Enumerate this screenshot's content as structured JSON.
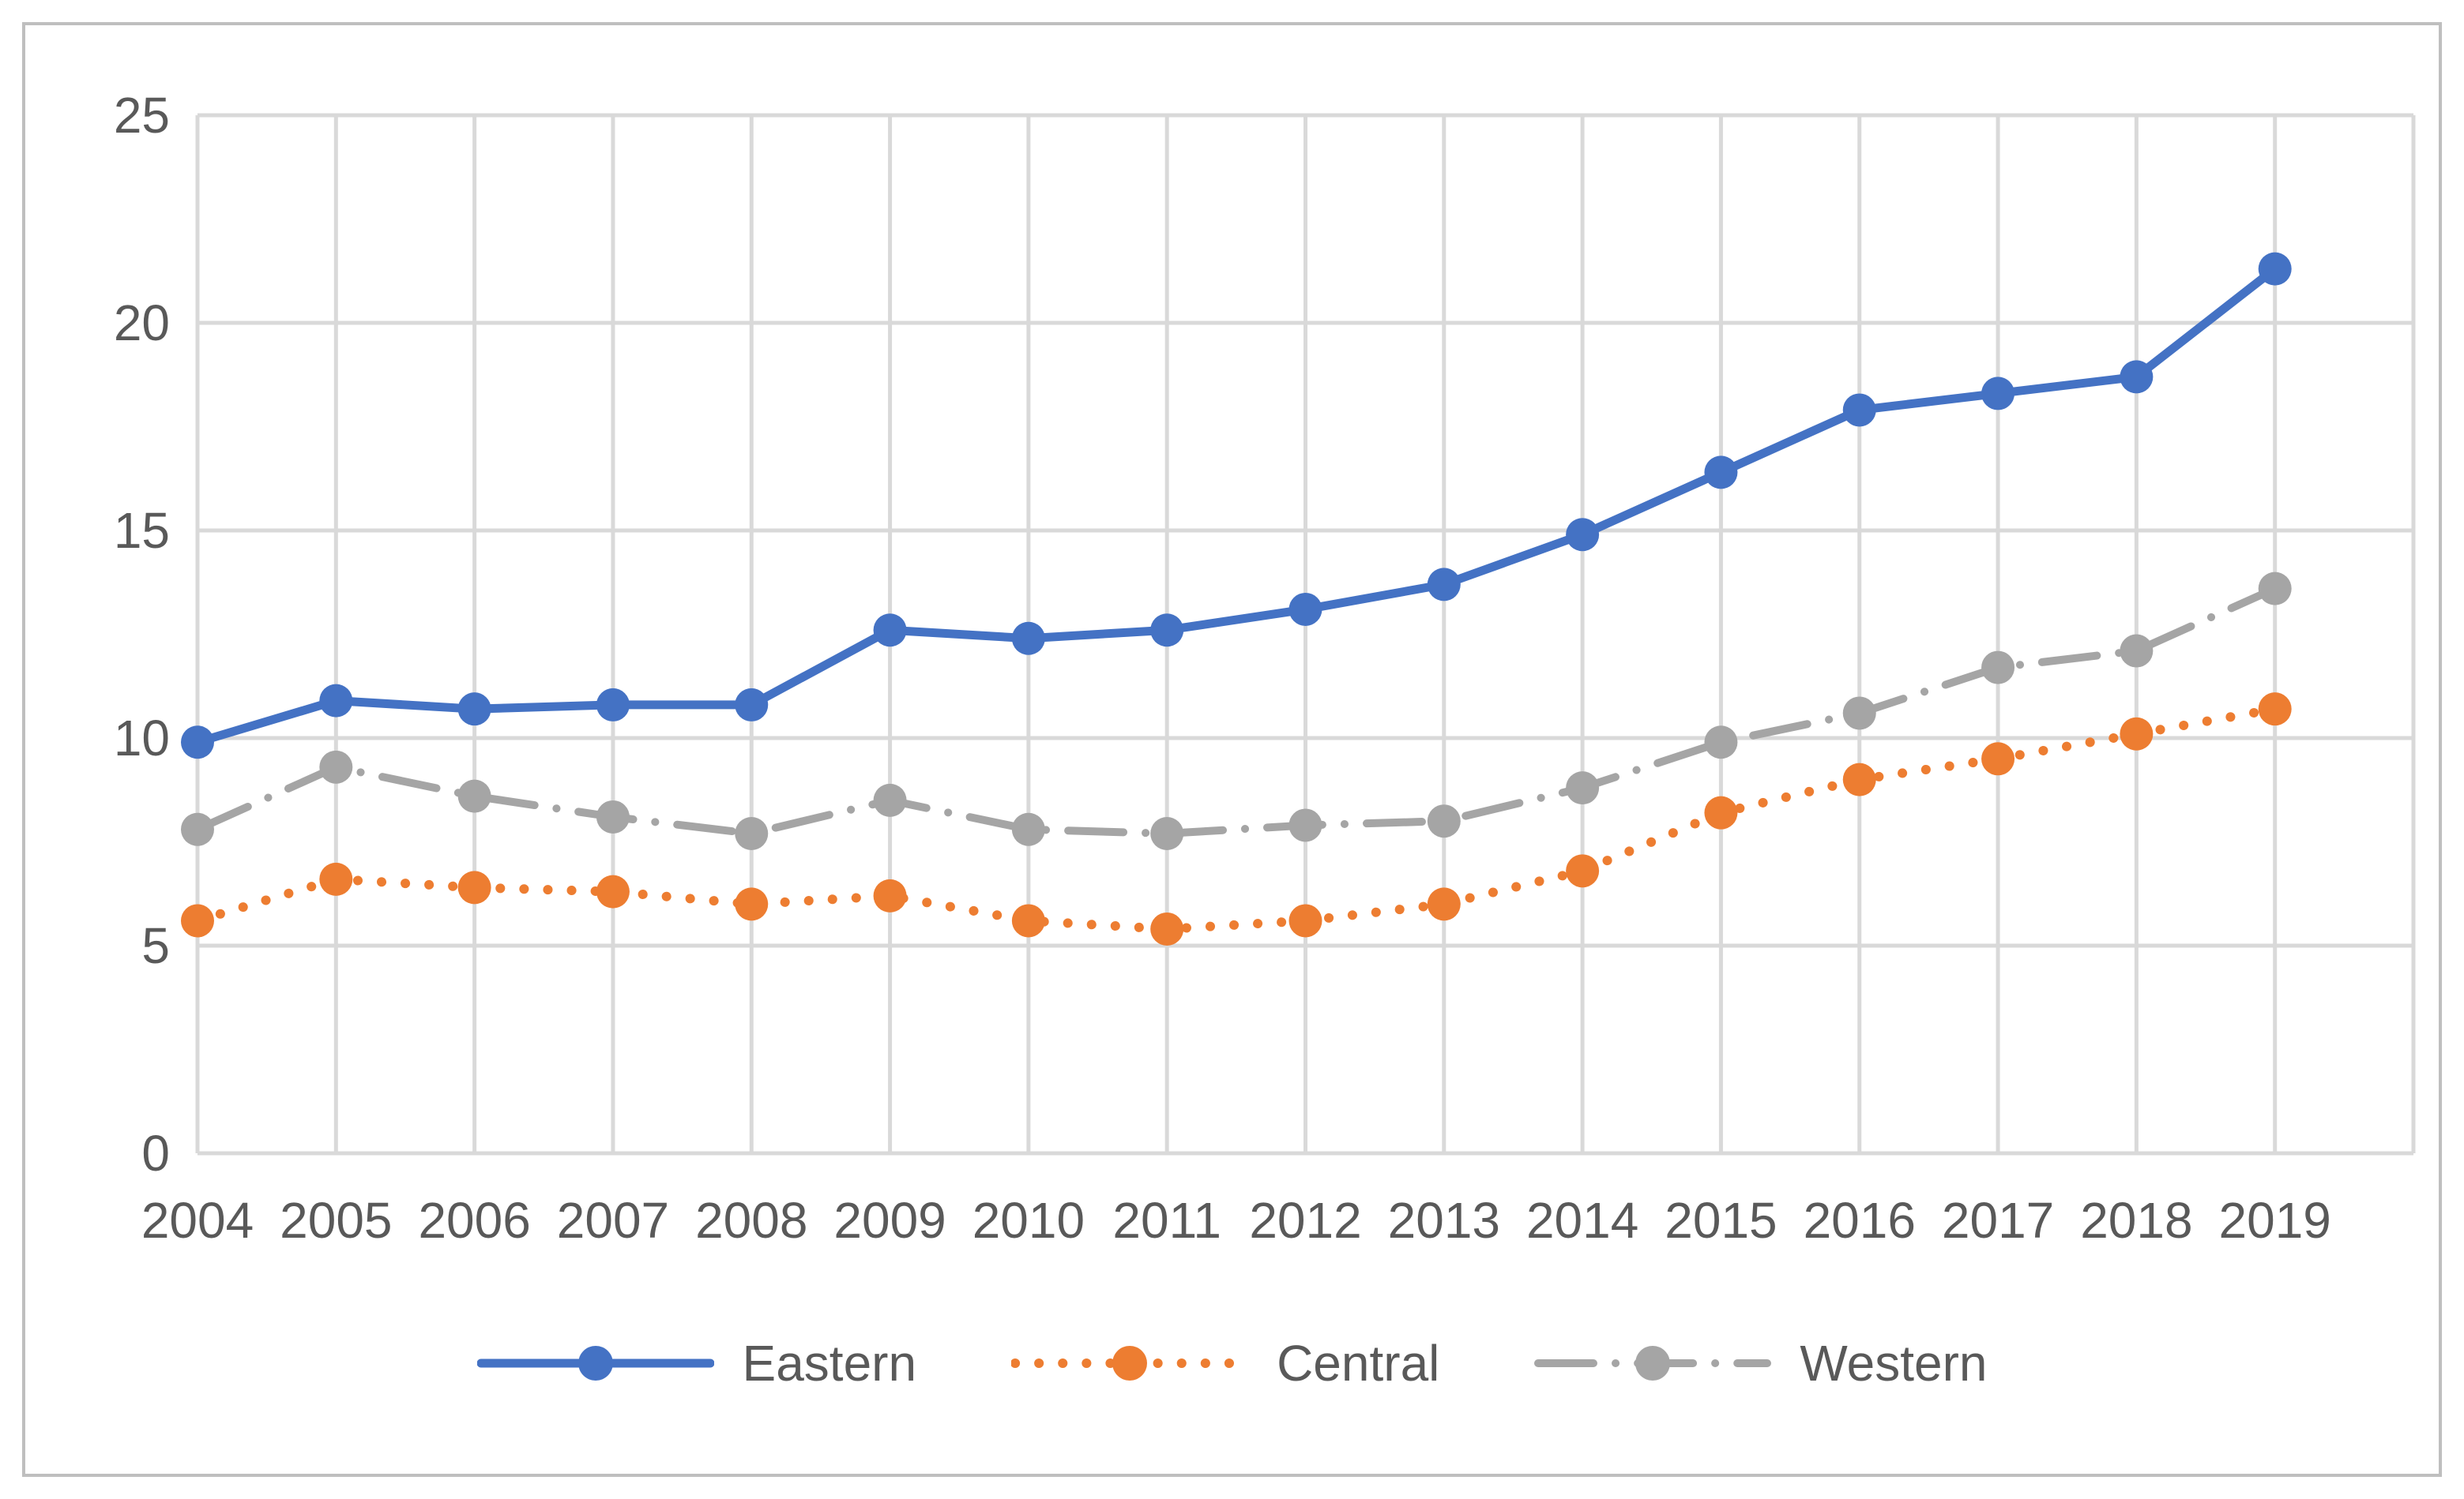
{
  "page": {
    "background": "#ffffff",
    "frame_border_color": "#bfbfbf"
  },
  "chart_data": {
    "type": "line",
    "title": "",
    "xlabel": "",
    "ylabel": "",
    "categories": [
      "2004",
      "2005",
      "2006",
      "2007",
      "2008",
      "2009",
      "2010",
      "2011",
      "2012",
      "2013",
      "2014",
      "2015",
      "2016",
      "2017",
      "2018",
      "2019"
    ],
    "series": [
      {
        "name": "Eastern",
        "color": "#4472C4",
        "style": "solid",
        "values": [
          9.9,
          10.9,
          10.7,
          10.8,
          10.8,
          12.6,
          12.4,
          12.6,
          13.1,
          13.7,
          14.9,
          16.4,
          17.9,
          18.3,
          18.7,
          21.3
        ]
      },
      {
        "name": "Central",
        "color": "#ED7D31",
        "style": "dotted",
        "values": [
          5.6,
          6.6,
          6.4,
          6.3,
          6.0,
          6.2,
          5.6,
          5.4,
          5.6,
          6.0,
          6.8,
          8.2,
          9.0,
          9.5,
          10.1,
          10.7
        ]
      },
      {
        "name": "Western",
        "color": "#A5A5A5",
        "style": "dash-dot",
        "values": [
          7.8,
          9.3,
          8.6,
          8.1,
          7.7,
          8.5,
          7.8,
          7.7,
          7.9,
          8.0,
          8.8,
          9.9,
          10.6,
          11.7,
          12.1,
          13.6
        ]
      }
    ],
    "ylim": [
      0,
      25
    ],
    "yticks": [
      0,
      5,
      10,
      15,
      20,
      25
    ],
    "grid": true,
    "gridline_color": "#D9D9D9",
    "tick_label_color": "#595959",
    "legend_position": "bottom"
  }
}
